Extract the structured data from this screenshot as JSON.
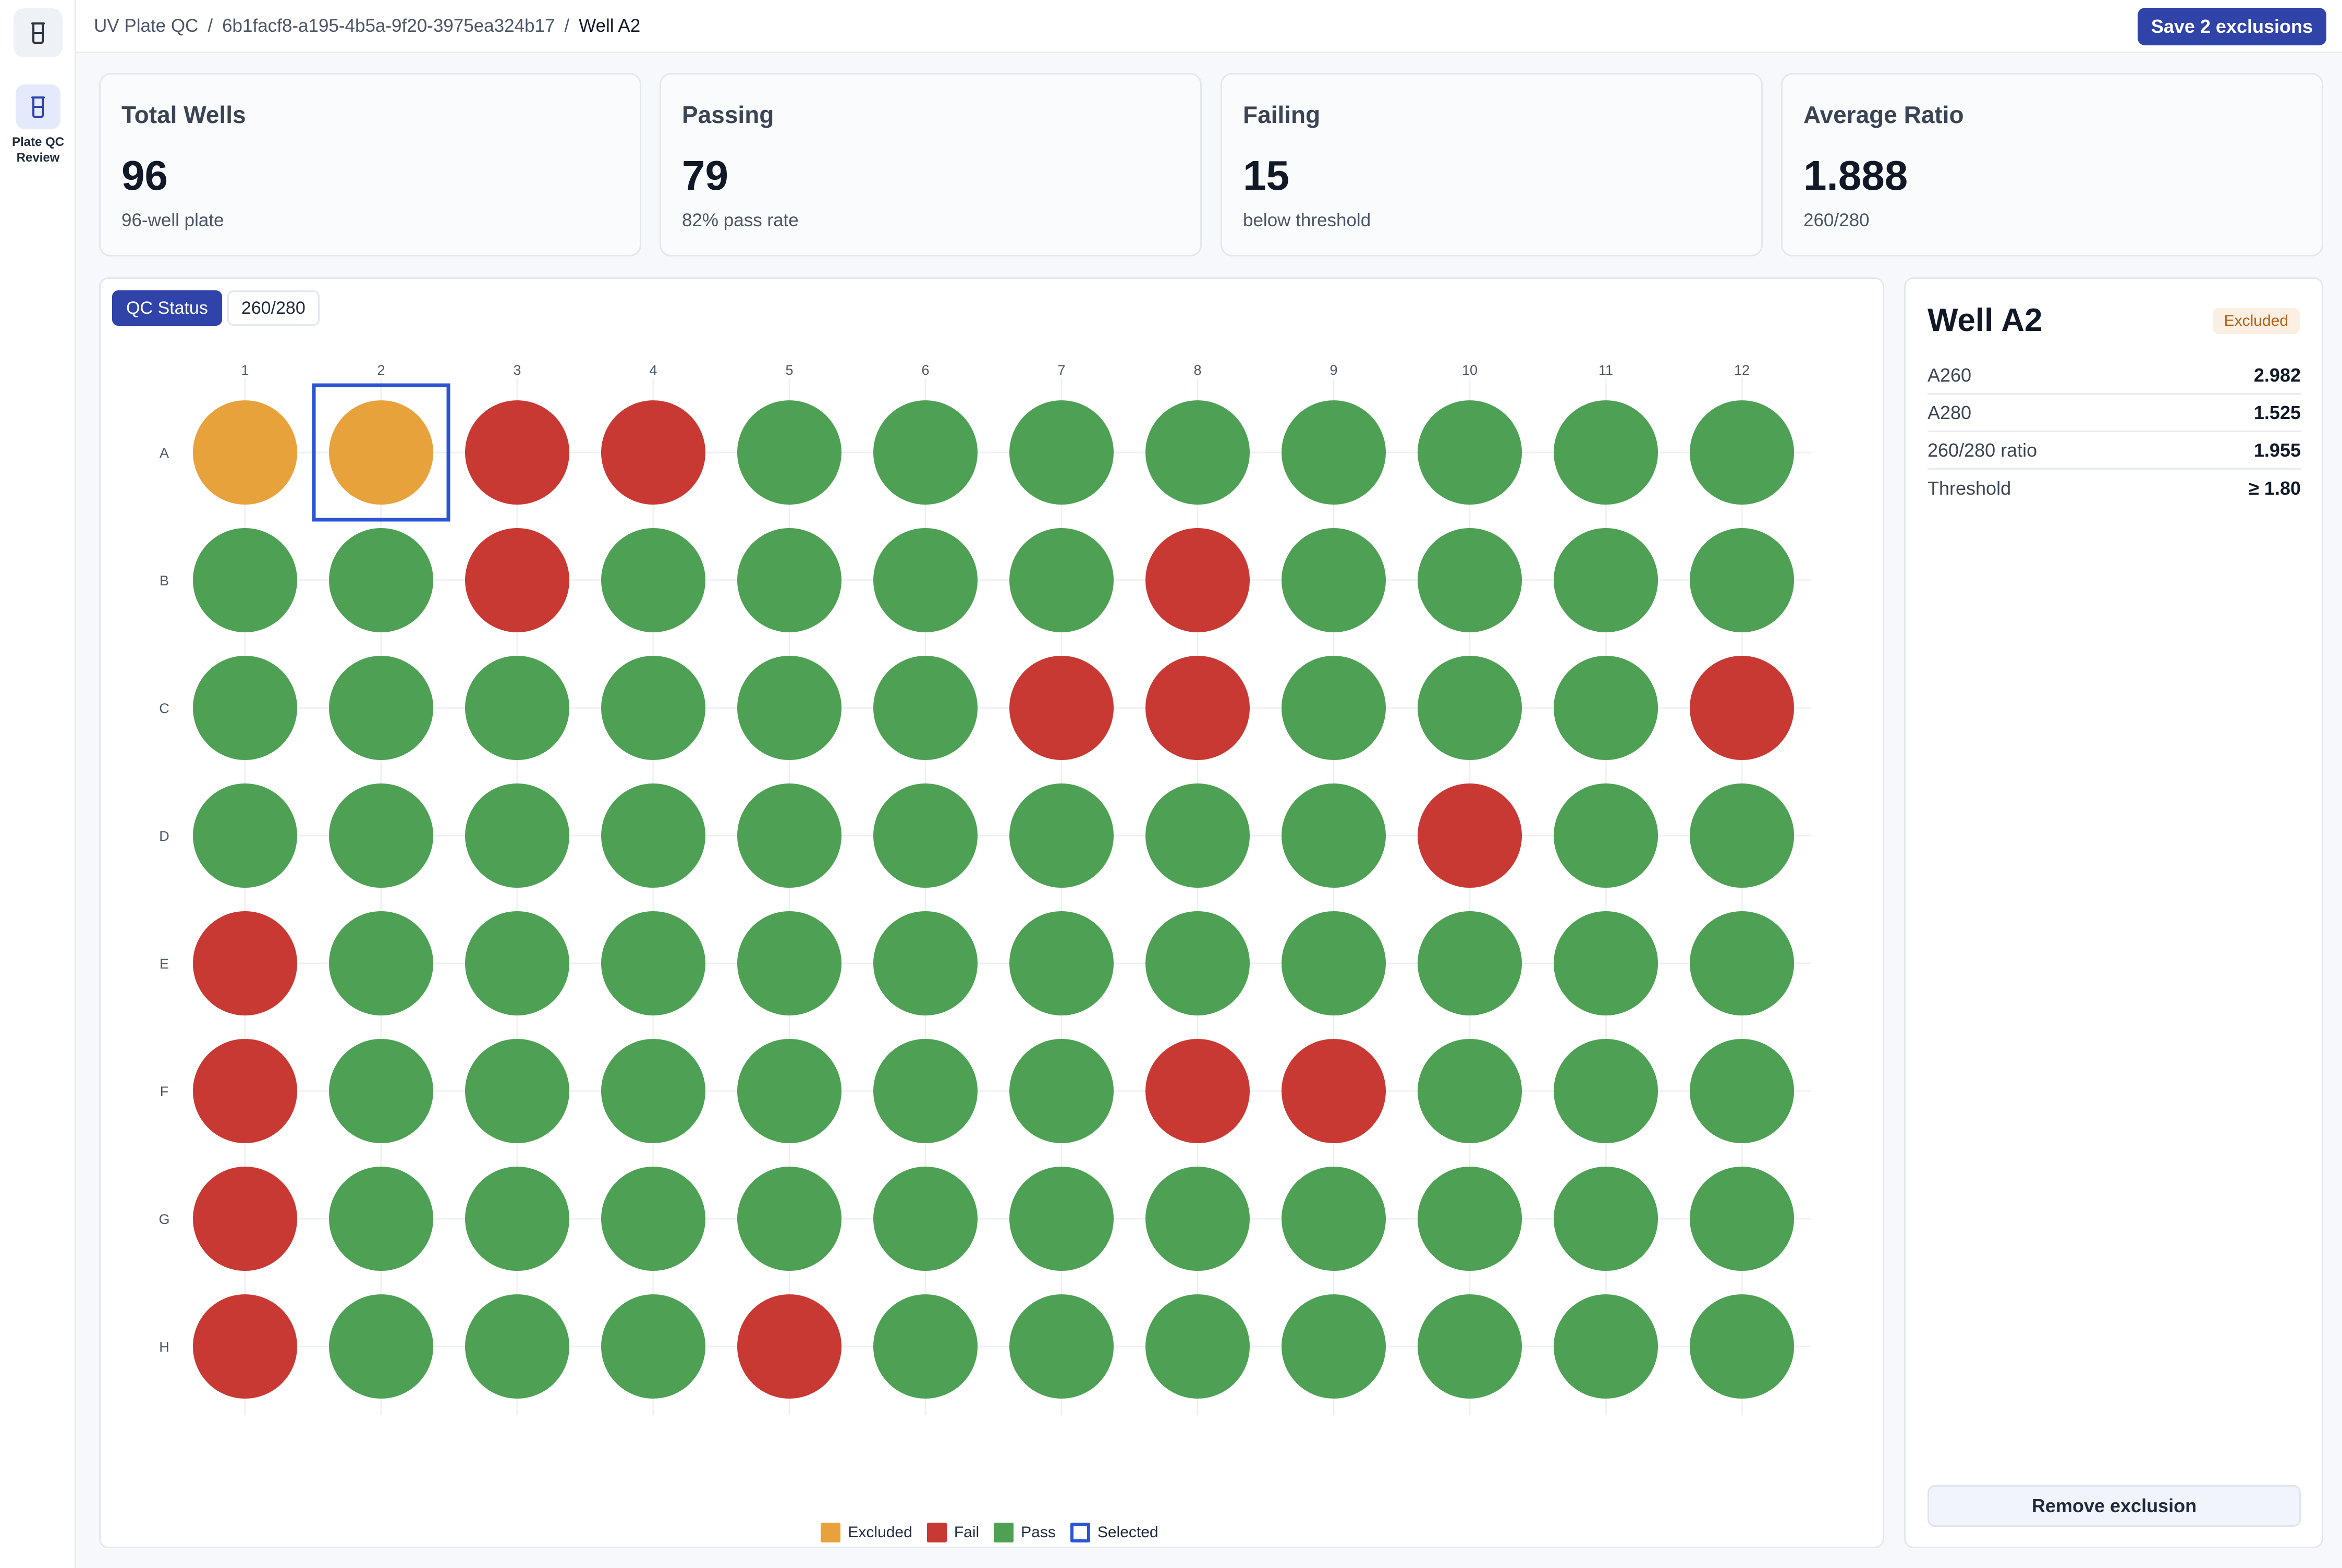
{
  "sidebar": {
    "logo_icon": "beaker-icon",
    "items": [
      {
        "label": "Plate QC Review",
        "icon": "beaker-icon",
        "active": true
      }
    ]
  },
  "breadcrumb": {
    "items": [
      "UV Plate QC",
      "6b1facf8-a195-4b5a-9f20-3975ea324b17"
    ],
    "current": "Well A2",
    "separator": "/"
  },
  "header": {
    "save_label": "Save 2 exclusions"
  },
  "kpis": [
    {
      "title": "Total Wells",
      "value": "96",
      "sub": "96-well plate"
    },
    {
      "title": "Passing",
      "value": "79",
      "sub": "82% pass rate"
    },
    {
      "title": "Failing",
      "value": "15",
      "sub": "below threshold"
    },
    {
      "title": "Average Ratio",
      "value": "1.888",
      "sub": "260/280"
    }
  ],
  "tabs": [
    {
      "label": "QC Status",
      "active": true
    },
    {
      "label": "260/280",
      "active": false
    }
  ],
  "colors": {
    "pass": "#4ea154",
    "fail": "#c93933",
    "excluded": "#e8a23c",
    "selected": "#2a56d6",
    "accent": "#2f43a8"
  },
  "chart_data": {
    "type": "heatmap",
    "columns": [
      "1",
      "2",
      "3",
      "4",
      "5",
      "6",
      "7",
      "8",
      "9",
      "10",
      "11",
      "12"
    ],
    "rows": [
      "A",
      "B",
      "C",
      "D",
      "E",
      "F",
      "G",
      "H"
    ],
    "status": [
      [
        "excluded",
        "excluded",
        "fail",
        "fail",
        "pass",
        "pass",
        "pass",
        "pass",
        "pass",
        "pass",
        "pass",
        "pass"
      ],
      [
        "pass",
        "pass",
        "fail",
        "pass",
        "pass",
        "pass",
        "pass",
        "fail",
        "pass",
        "pass",
        "pass",
        "pass"
      ],
      [
        "pass",
        "pass",
        "pass",
        "pass",
        "pass",
        "pass",
        "fail",
        "fail",
        "pass",
        "pass",
        "pass",
        "fail"
      ],
      [
        "pass",
        "pass",
        "pass",
        "pass",
        "pass",
        "pass",
        "pass",
        "pass",
        "pass",
        "fail",
        "pass",
        "pass"
      ],
      [
        "fail",
        "pass",
        "pass",
        "pass",
        "pass",
        "pass",
        "pass",
        "pass",
        "pass",
        "pass",
        "pass",
        "pass"
      ],
      [
        "fail",
        "pass",
        "pass",
        "pass",
        "pass",
        "pass",
        "pass",
        "fail",
        "fail",
        "pass",
        "pass",
        "pass"
      ],
      [
        "fail",
        "pass",
        "pass",
        "pass",
        "pass",
        "pass",
        "pass",
        "pass",
        "pass",
        "pass",
        "pass",
        "pass"
      ],
      [
        "fail",
        "pass",
        "pass",
        "pass",
        "fail",
        "pass",
        "pass",
        "pass",
        "pass",
        "pass",
        "pass",
        "pass"
      ]
    ],
    "selected": {
      "row": "A",
      "column": "2"
    },
    "legend": [
      {
        "label": "Excluded",
        "key": "excluded"
      },
      {
        "label": "Fail",
        "key": "fail"
      },
      {
        "label": "Pass",
        "key": "pass"
      },
      {
        "label": "Selected",
        "key": "selected"
      }
    ]
  },
  "detail": {
    "title": "Well A2",
    "badge": "Excluded",
    "rows": [
      {
        "label": "A260",
        "value": "2.982"
      },
      {
        "label": "A280",
        "value": "1.525"
      },
      {
        "label": "260/280 ratio",
        "value": "1.955"
      },
      {
        "label": "Threshold",
        "value": "≥ 1.80"
      }
    ],
    "remove_label": "Remove exclusion"
  }
}
